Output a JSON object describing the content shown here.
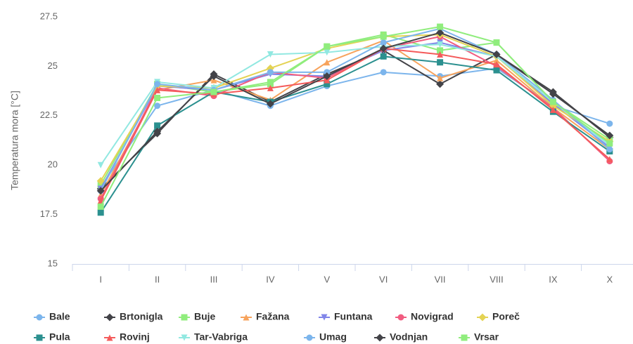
{
  "chart_data": {
    "type": "line",
    "y_axis_label": "Temperatura mora [°C]",
    "categories": [
      "I",
      "II",
      "III",
      "IV",
      "V",
      "VI",
      "VII",
      "VIII",
      "IX",
      "X"
    ],
    "ylim": [
      15,
      27.5
    ],
    "yticks": [
      15,
      17.5,
      20,
      22.5,
      25,
      27.5
    ],
    "grid": false,
    "legend": "bottom",
    "series": [
      {
        "name": "Bale",
        "color": "#7cb5ec",
        "marker": "circle",
        "values": [
          18.9,
          23.0,
          23.8,
          23.0,
          24.0,
          24.7,
          24.5,
          24.9,
          23.0,
          22.1
        ]
      },
      {
        "name": "Brtonigla",
        "color": "#434348",
        "marker": "diamond",
        "values": [
          18.8,
          21.6,
          24.6,
          23.2,
          24.6,
          25.8,
          24.1,
          25.6,
          23.7,
          21.4
        ]
      },
      {
        "name": "Buje",
        "color": "#90ed7d",
        "marker": "square",
        "values": [
          19.0,
          24.1,
          23.7,
          24.1,
          26.0,
          26.6,
          25.8,
          26.2,
          23.2,
          21.3
        ]
      },
      {
        "name": "Fažana",
        "color": "#f7a35c",
        "marker": "triangle",
        "values": [
          18.5,
          23.8,
          24.3,
          23.3,
          25.2,
          26.3,
          24.4,
          25.3,
          22.9,
          20.8
        ]
      },
      {
        "name": "Funtana",
        "color": "#8085e9",
        "marker": "triangle-down",
        "values": [
          18.8,
          24.0,
          23.8,
          24.6,
          24.5,
          25.8,
          26.2,
          25.5,
          23.1,
          20.9
        ]
      },
      {
        "name": "Novigrad",
        "color": "#f15c80",
        "marker": "circle",
        "values": [
          18.3,
          23.9,
          23.5,
          24.7,
          24.4,
          25.9,
          26.5,
          25.0,
          22.9,
          20.2
        ]
      },
      {
        "name": "Poreč",
        "color": "#e4d354",
        "marker": "diamond",
        "values": [
          19.2,
          24.0,
          23.9,
          24.9,
          25.9,
          26.5,
          26.6,
          25.5,
          23.0,
          21.2
        ]
      },
      {
        "name": "Pula",
        "color": "#2b908f",
        "marker": "square",
        "values": [
          17.6,
          22.0,
          23.7,
          23.2,
          24.1,
          25.5,
          25.2,
          24.8,
          22.7,
          20.7
        ]
      },
      {
        "name": "Rovinj",
        "color": "#f45b5b",
        "marker": "triangle",
        "values": [
          18.2,
          23.8,
          23.6,
          23.9,
          24.3,
          25.9,
          25.6,
          25.1,
          22.8,
          20.3
        ]
      },
      {
        "name": "Tar-Vabriga",
        "color": "#91e8e1",
        "marker": "triangle-down",
        "values": [
          20.0,
          24.2,
          23.9,
          25.6,
          25.7,
          26.0,
          26.1,
          25.5,
          23.2,
          21.0
        ]
      },
      {
        "name": "Umag",
        "color": "#7cb5ec",
        "marker": "circle",
        "values": [
          18.7,
          24.1,
          23.8,
          24.7,
          24.7,
          26.2,
          26.9,
          25.6,
          23.3,
          20.8
        ]
      },
      {
        "name": "Vodnjan",
        "color": "#434348",
        "marker": "diamond",
        "values": [
          18.7,
          21.7,
          24.5,
          23.1,
          24.5,
          25.9,
          26.7,
          25.6,
          23.6,
          21.5
        ]
      },
      {
        "name": "Vrsar",
        "color": "#90ed7d",
        "marker": "square",
        "values": [
          17.9,
          23.4,
          23.7,
          24.2,
          26.0,
          26.5,
          27.0,
          26.2,
          23.2,
          21.1
        ]
      }
    ]
  }
}
